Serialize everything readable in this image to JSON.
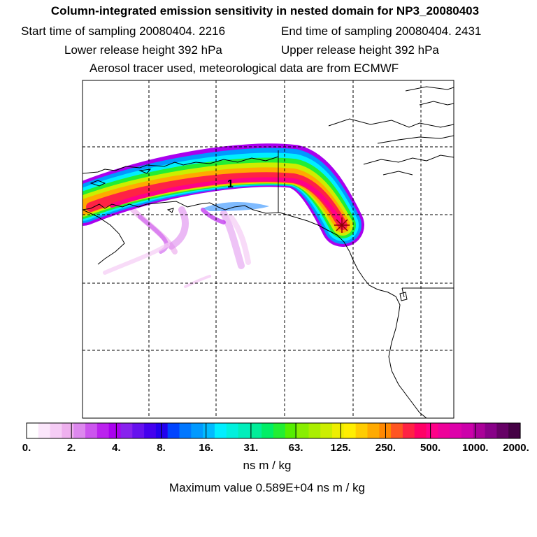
{
  "title": "Column-integrated emission sensitivity in nested domain for NP3_20080403",
  "start_label": "Start time of sampling 20080404.  2216",
  "end_label": "End time of sampling 20080404.  2431",
  "lower_label": "Lower release height  392 hPa",
  "upper_label": "Upper release height  392 hPa",
  "aerosol_label": "Aerosol tracer used, meteorological data are from ECMWF",
  "map": {
    "release_marker_label": "1",
    "colors": {
      "coastline": "#000000",
      "grid": "#000000",
      "marker": "#8b0000"
    }
  },
  "colorbar": {
    "ticks": [
      "0.",
      "2.",
      "4.",
      "8.",
      "16.",
      "31.",
      "63.",
      "125.",
      "250.",
      "500.",
      "1000.",
      "2000."
    ],
    "colors": [
      "#ffffff",
      "#fbe6fb",
      "#f5ccf5",
      "#eeb0ee",
      "#dd88ee",
      "#cc55ee",
      "#bb22ee",
      "#aa00ee",
      "#8822ee",
      "#6611ee",
      "#4400ee",
      "#2200ee",
      "#0044ff",
      "#0077ff",
      "#0099ff",
      "#00bbff",
      "#00eeff",
      "#00f0dd",
      "#00eebb",
      "#00ee99",
      "#00ee66",
      "#22ee33",
      "#55ee00",
      "#88ee00",
      "#aaee00",
      "#ccee00",
      "#eeee00",
      "#ffee00",
      "#ffcc00",
      "#ffaa00",
      "#ff8800",
      "#ff5522",
      "#ff2244",
      "#ff0066",
      "#ff0088",
      "#ee0099",
      "#dd00aa",
      "#cc00aa",
      "#aa0099",
      "#880088",
      "#660066",
      "#440044"
    ]
  },
  "units": "ns m / kg",
  "max_value": "Maximum value  0.589E+04 ns m / kg"
}
